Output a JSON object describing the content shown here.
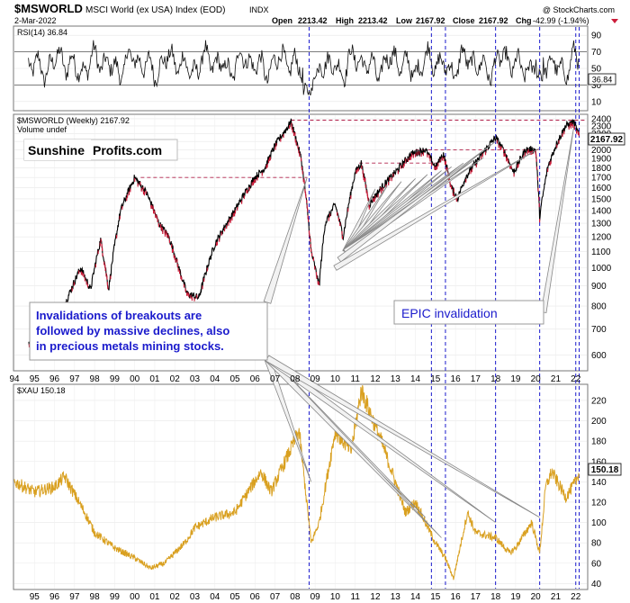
{
  "header": {
    "symbol": "$MSWORLD",
    "description": "MSCI World (ex USA) Index (EOD)",
    "exchange": "INDX",
    "date": "2-Mar-2022",
    "copyright": "@ StockCharts.com",
    "open_label": "Open",
    "open": "2213.42",
    "high_label": "High",
    "high": "2213.42",
    "low_label": "Low",
    "low": "2167.92",
    "close_label": "Close",
    "close": "2167.92",
    "chg_label": "Chg",
    "chg": "-42.99 (-1.94%)"
  },
  "logo": {
    "part1": "Sunshine",
    "part2": "Profits.com"
  },
  "annotations": {
    "left_lines": [
      "Invalidations of breakouts are",
      "followed by massive declines, also",
      "in precious metals mining stocks."
    ],
    "right": "EPIC invalidation"
  },
  "colors": {
    "price_up": "#000000",
    "price_down": "#cc1d3a",
    "xau": "#d9a020",
    "annotation_text": "#1a1acc",
    "logo_red": "#c8102e",
    "guide_blue": "#1a1acc",
    "dashed_red": "#b0204a"
  },
  "chart_data": [
    {
      "type": "line",
      "title": "RSI(14) 36.84",
      "legend": "RSI(14) 36.84",
      "last_value": "36.84",
      "y_ticks": [
        10,
        30,
        50,
        70,
        90
      ],
      "ylim": [
        0,
        100
      ],
      "reference_lines": [
        30,
        70
      ]
    },
    {
      "type": "line",
      "scale": "log",
      "title": "$MSWORLD (Weekly) 2167.92",
      "legend": "$MSWORLD (Weekly) 2167.92",
      "legend2": "Volume undef",
      "last_value": "2167.92",
      "ylim": [
        550,
        2450
      ],
      "y_ticks": [
        600,
        700,
        800,
        900,
        1000,
        1100,
        1200,
        1300,
        1400,
        1500,
        1600,
        1700,
        1800,
        1900,
        2000,
        2100,
        2200,
        2300,
        2400
      ],
      "x_ticks": [
        "94",
        "95",
        "96",
        "97",
        "98",
        "99",
        "00",
        "01",
        "02",
        "03",
        "04",
        "05",
        "06",
        "07",
        "08",
        "09",
        "10",
        "11",
        "12",
        "13",
        "14",
        "15",
        "16",
        "17",
        "18",
        "19",
        "20",
        "21",
        "22"
      ],
      "x": [
        1994.7,
        1995.2,
        1995.8,
        1996.5,
        1997.3,
        1997.8,
        1998.3,
        1998.7,
        1999.3,
        2000.0,
        2000.6,
        2001.2,
        2001.7,
        2002.2,
        2002.6,
        2003.2,
        2004.0,
        2005.0,
        2006.0,
        2006.5,
        2007.0,
        2007.8,
        2008.3,
        2008.8,
        2009.2,
        2009.5,
        2010.0,
        2010.4,
        2011.0,
        2011.3,
        2011.7,
        2012.3,
        2013.0,
        2013.8,
        2014.5,
        2015.0,
        2015.4,
        2015.8,
        2016.1,
        2016.5,
        2017.0,
        2017.5,
        2018.0,
        2018.5,
        2018.9,
        2019.5,
        2020.0,
        2020.2,
        2020.6,
        2021.0,
        2021.5,
        2021.9,
        2022.17
      ],
      "values": [
        640,
        600,
        680,
        800,
        1000,
        880,
        1180,
        880,
        1400,
        1700,
        1550,
        1300,
        1200,
        1000,
        860,
        840,
        1150,
        1400,
        1700,
        1800,
        2050,
        2350,
        1900,
        1100,
        900,
        1300,
        1450,
        1200,
        1750,
        1850,
        1450,
        1600,
        1750,
        1950,
        2000,
        1800,
        1950,
        1600,
        1500,
        1700,
        1850,
        2000,
        2150,
        1950,
        1750,
        2000,
        2000,
        1350,
        1800,
        2050,
        2300,
        2350,
        2167.92
      ],
      "reference_levels": [
        1700,
        1850,
        2000,
        2380
      ]
    },
    {
      "type": "line",
      "title": "$XAU 150.18",
      "legend": "$XAU 150.18",
      "last_value": "150.18",
      "ylim": [
        35,
        235
      ],
      "y_ticks": [
        40,
        60,
        80,
        100,
        120,
        140,
        160,
        180,
        200,
        220
      ],
      "x_ticks": [
        "95",
        "96",
        "97",
        "98",
        "99",
        "00",
        "01",
        "02",
        "03",
        "04",
        "05",
        "06",
        "07",
        "08",
        "09",
        "10",
        "11",
        "12",
        "13",
        "14",
        "15",
        "16",
        "17",
        "18",
        "19",
        "20",
        "21",
        "22"
      ],
      "x": [
        1994.0,
        1995.0,
        1996.0,
        1996.5,
        1997.5,
        1998.0,
        1999.0,
        2000.0,
        2000.8,
        2001.5,
        2002.5,
        2003.0,
        2004.0,
        2005.0,
        2006.3,
        2006.8,
        2007.5,
        2008.2,
        2008.8,
        2009.2,
        2010.0,
        2010.8,
        2011.3,
        2011.7,
        2012.3,
        2013.0,
        2013.5,
        2014.0,
        2014.5,
        2015.0,
        2015.5,
        2015.9,
        2016.6,
        2017.0,
        2018.0,
        2018.7,
        2019.0,
        2019.8,
        2020.2,
        2020.5,
        2020.8,
        2021.5,
        2022.0,
        2022.17
      ],
      "values": [
        140,
        130,
        135,
        145,
        110,
        90,
        75,
        65,
        55,
        60,
        80,
        95,
        105,
        110,
        150,
        130,
        160,
        190,
        80,
        100,
        190,
        170,
        230,
        210,
        180,
        140,
        110,
        120,
        100,
        80,
        65,
        45,
        110,
        90,
        85,
        70,
        75,
        100,
        70,
        135,
        150,
        125,
        140,
        150.18
      ]
    }
  ]
}
